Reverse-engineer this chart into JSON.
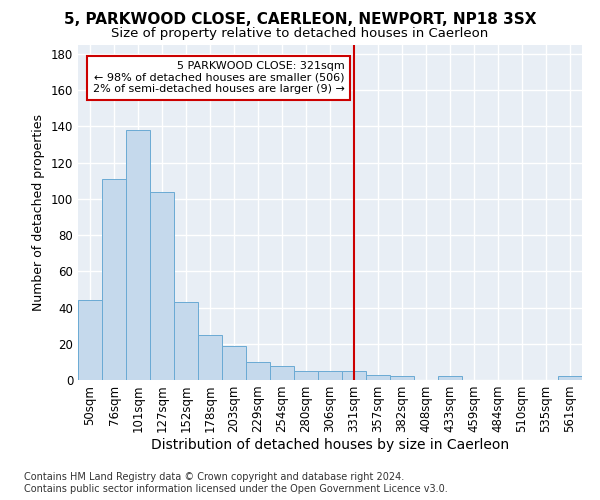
{
  "title": "5, PARKWOOD CLOSE, CAERLEON, NEWPORT, NP18 3SX",
  "subtitle": "Size of property relative to detached houses in Caerleon",
  "xlabel": "Distribution of detached houses by size in Caerleon",
  "ylabel": "Number of detached properties",
  "footnote": "Contains HM Land Registry data © Crown copyright and database right 2024.\nContains public sector information licensed under the Open Government Licence v3.0.",
  "bar_labels": [
    "50sqm",
    "76sqm",
    "101sqm",
    "127sqm",
    "152sqm",
    "178sqm",
    "203sqm",
    "229sqm",
    "254sqm",
    "280sqm",
    "306sqm",
    "331sqm",
    "357sqm",
    "382sqm",
    "408sqm",
    "433sqm",
    "459sqm",
    "484sqm",
    "510sqm",
    "535sqm",
    "561sqm"
  ],
  "bar_values": [
    44,
    111,
    138,
    104,
    43,
    25,
    19,
    10,
    8,
    5,
    5,
    5,
    3,
    2,
    0,
    2,
    0,
    0,
    0,
    0,
    2
  ],
  "bar_color": "#c5d9ec",
  "bar_edge_color": "#6aaad4",
  "property_line_x": 11,
  "property_line_label": "5 PARKWOOD CLOSE: 321sqm",
  "annotation_line1": "← 98% of detached houses are smaller (506)",
  "annotation_line2": "2% of semi-detached houses are larger (9) →",
  "annotation_box_color": "#cc0000",
  "ylim": [
    0,
    185
  ],
  "yticks": [
    0,
    20,
    40,
    60,
    80,
    100,
    120,
    140,
    160,
    180
  ],
  "fig_bg_color": "#ffffff",
  "bg_color": "#e8eef5",
  "grid_color": "#ffffff",
  "title_fontsize": 11,
  "subtitle_fontsize": 9.5,
  "xlabel_fontsize": 10,
  "ylabel_fontsize": 9,
  "tick_fontsize": 8.5,
  "footnote_fontsize": 7
}
